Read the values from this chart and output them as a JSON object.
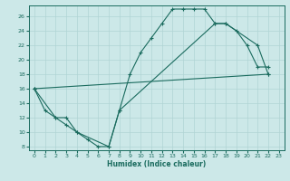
{
  "xlabel": "Humidex (Indice chaleur)",
  "bg_color": "#cce8e8",
  "line_color": "#1a6b5e",
  "grid_color": "#b0d4d4",
  "xlim": [
    -0.5,
    23.5
  ],
  "ylim": [
    7.5,
    27.5
  ],
  "xticks": [
    0,
    1,
    2,
    3,
    4,
    5,
    6,
    7,
    8,
    9,
    10,
    11,
    12,
    13,
    14,
    15,
    16,
    17,
    18,
    19,
    20,
    21,
    22,
    23
  ],
  "yticks": [
    8,
    10,
    12,
    14,
    16,
    18,
    20,
    22,
    24,
    26
  ],
  "line1_x": [
    0,
    1,
    2,
    3,
    4,
    5,
    6,
    7,
    8,
    9,
    10,
    11,
    12,
    13,
    14,
    15,
    16,
    17,
    18,
    19,
    20,
    21,
    22
  ],
  "line1_y": [
    16,
    13,
    12,
    12,
    10,
    9,
    8,
    8,
    13,
    18,
    21,
    23,
    25,
    27,
    27,
    27,
    27,
    25,
    25,
    24,
    22,
    19,
    19
  ],
  "line2_x": [
    0,
    2,
    3,
    4,
    7,
    8,
    17,
    18,
    21,
    22
  ],
  "line2_y": [
    16,
    12,
    11,
    10,
    8,
    13,
    25,
    25,
    22,
    18
  ],
  "line3_x": [
    0,
    22
  ],
  "line3_y": [
    16,
    18
  ]
}
